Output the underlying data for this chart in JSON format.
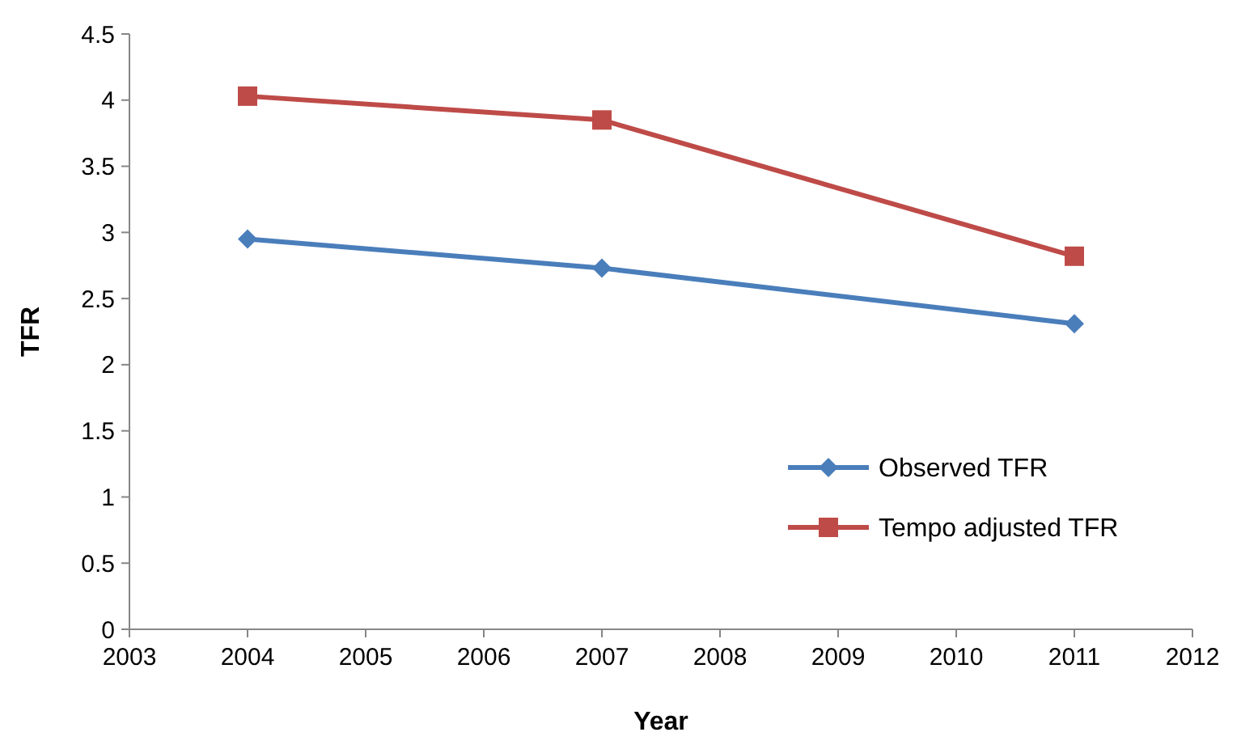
{
  "chart_data": {
    "type": "line",
    "xlabel": "Year",
    "ylabel": "TFR",
    "x": [
      2004,
      2007,
      2011
    ],
    "series": [
      {
        "name": "Observed TFR",
        "color": "#4a7ebb",
        "marker": "diamond",
        "values": [
          2.95,
          2.73,
          2.31
        ]
      },
      {
        "name": "Tempo adjusted TFR",
        "color": "#be4b48",
        "marker": "square",
        "values": [
          4.03,
          3.85,
          2.82
        ]
      }
    ],
    "xlim": [
      2003,
      2012
    ],
    "xticks": [
      2003,
      2004,
      2005,
      2006,
      2007,
      2008,
      2009,
      2010,
      2011,
      2012
    ],
    "ylim": [
      0,
      4.5
    ],
    "yticks": [
      {
        "value": 0,
        "label": "0"
      },
      {
        "value": 0.5,
        "label": "0.5"
      },
      {
        "value": 1,
        "label": "1"
      },
      {
        "value": 1.5,
        "label": "1.5"
      },
      {
        "value": 2,
        "label": "2"
      },
      {
        "value": 2.5,
        "label": "2.5"
      },
      {
        "value": 3,
        "label": "3"
      },
      {
        "value": 3.5,
        "label": "3.5"
      },
      {
        "value": 4,
        "label": "4"
      },
      {
        "value": 4.5,
        "label": "4.5"
      }
    ],
    "grid": false,
    "legend": "bottom right",
    "line_style": "solid"
  }
}
